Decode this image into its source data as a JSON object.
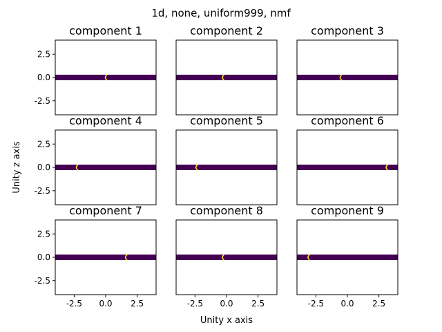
{
  "figure": {
    "suptitle": "1d, none, uniform999, nmf",
    "xlabel": "Unity x axis",
    "ylabel": "Unity z axis"
  },
  "colors": {
    "band": "#440154",
    "highlight": "#fde725",
    "axes": "#000000"
  },
  "chart_data": [
    {
      "type": "heatmap",
      "title": "component 1",
      "xlim": [
        -4,
        4
      ],
      "ylim": [
        -4,
        4
      ],
      "band_y": 0.0,
      "highlight_x": 0.0,
      "xticks": [
        "-2.5",
        "0.0",
        "2.5"
      ],
      "yticks": [
        "2.5",
        "0.0",
        "-2.5"
      ],
      "xtick_values": [
        -2.5,
        0,
        2.5
      ],
      "ytick_values": [
        2.5,
        0,
        -2.5
      ]
    },
    {
      "type": "heatmap",
      "title": "component 2",
      "xlim": [
        -4,
        4
      ],
      "ylim": [
        -4,
        4
      ],
      "band_y": 0.0,
      "highlight_x": -0.3,
      "xticks": [
        "-2.5",
        "0.0",
        "2.5"
      ],
      "yticks": [
        "2.5",
        "0.0",
        "-2.5"
      ],
      "xtick_values": [
        -2.5,
        0,
        2.5
      ],
      "ytick_values": [
        2.5,
        0,
        -2.5
      ]
    },
    {
      "type": "heatmap",
      "title": "component 3",
      "xlim": [
        -4,
        4
      ],
      "ylim": [
        -4,
        4
      ],
      "band_y": 0.0,
      "highlight_x": -0.55,
      "xticks": [
        "-2.5",
        "0.0",
        "2.5"
      ],
      "yticks": [
        "2.5",
        "0.0",
        "-2.5"
      ],
      "xtick_values": [
        -2.5,
        0,
        2.5
      ],
      "ytick_values": [
        2.5,
        0,
        -2.5
      ]
    },
    {
      "type": "heatmap",
      "title": "component 4",
      "xlim": [
        -4,
        4
      ],
      "ylim": [
        -4,
        4
      ],
      "band_y": 0.0,
      "highlight_x": -2.3,
      "xticks": [
        "-2.5",
        "0.0",
        "2.5"
      ],
      "yticks": [
        "2.5",
        "0.0",
        "-2.5"
      ],
      "xtick_values": [
        -2.5,
        0,
        2.5
      ],
      "ytick_values": [
        2.5,
        0,
        -2.5
      ]
    },
    {
      "type": "heatmap",
      "title": "component 5",
      "xlim": [
        -4,
        4
      ],
      "ylim": [
        -4,
        4
      ],
      "band_y": 0.0,
      "highlight_x": -2.4,
      "xticks": [
        "-2.5",
        "0.0",
        "2.5"
      ],
      "yticks": [
        "2.5",
        "0.0",
        "-2.5"
      ],
      "xtick_values": [
        -2.5,
        0,
        2.5
      ],
      "ytick_values": [
        2.5,
        0,
        -2.5
      ]
    },
    {
      "type": "heatmap",
      "title": "component 6",
      "xlim": [
        -4,
        4
      ],
      "ylim": [
        -4,
        4
      ],
      "band_y": 0.0,
      "highlight_x": 3.1,
      "xticks": [
        "-2.5",
        "0.0",
        "2.5"
      ],
      "yticks": [
        "2.5",
        "0.0",
        "-2.5"
      ],
      "xtick_values": [
        -2.5,
        0,
        2.5
      ],
      "ytick_values": [
        2.5,
        0,
        -2.5
      ]
    },
    {
      "type": "heatmap",
      "title": "component 7",
      "xlim": [
        -4,
        4
      ],
      "ylim": [
        -4,
        4
      ],
      "band_y": 0.0,
      "highlight_x": 1.6,
      "xticks": [
        "-2.5",
        "0.0",
        "2.5"
      ],
      "yticks": [
        "2.5",
        "0.0",
        "-2.5"
      ],
      "xtick_values": [
        -2.5,
        0,
        2.5
      ],
      "ytick_values": [
        2.5,
        0,
        -2.5
      ]
    },
    {
      "type": "heatmap",
      "title": "component 8",
      "xlim": [
        -4,
        4
      ],
      "ylim": [
        -4,
        4
      ],
      "band_y": 0.0,
      "highlight_x": -0.3,
      "xticks": [
        "-2.5",
        "0.0",
        "2.5"
      ],
      "yticks": [
        "2.5",
        "0.0",
        "-2.5"
      ],
      "xtick_values": [
        -2.5,
        0,
        2.5
      ],
      "ytick_values": [
        2.5,
        0,
        -2.5
      ]
    },
    {
      "type": "heatmap",
      "title": "component 9",
      "xlim": [
        -4,
        4
      ],
      "ylim": [
        -4,
        4
      ],
      "band_y": 0.0,
      "highlight_x": -3.1,
      "xticks": [
        "-2.5",
        "0.0",
        "2.5"
      ],
      "yticks": [
        "2.5",
        "0.0",
        "-2.5"
      ],
      "xtick_values": [
        -2.5,
        0,
        2.5
      ],
      "ytick_values": [
        2.5,
        0,
        -2.5
      ]
    }
  ]
}
